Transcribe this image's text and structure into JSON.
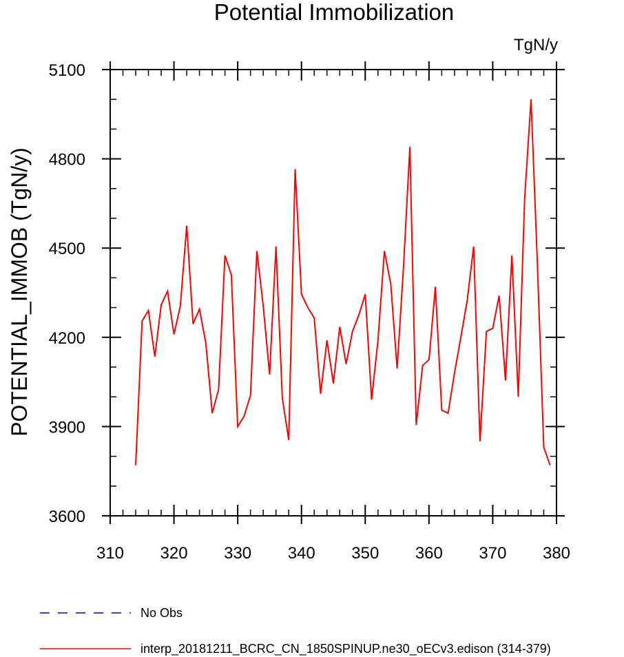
{
  "chart_data": {
    "type": "line",
    "title": "Potential Immobilization",
    "units_label": "TgN/y",
    "ylabel": "POTENTIAL_IMMOB  (TgN/y)",
    "xlabel": "",
    "xlim": [
      310,
      380
    ],
    "ylim": [
      3600,
      5100
    ],
    "x_ticks": [
      310,
      320,
      330,
      340,
      350,
      360,
      370,
      380
    ],
    "y_ticks": [
      3600,
      3900,
      4200,
      4500,
      4800,
      5100
    ],
    "x_minor_step": 2,
    "y_minor_step": 100,
    "series": [
      {
        "name": "interp_20181211_BCRC_CN_1850SPINUP.ne30_oECv3.edison (314-379)",
        "color": "#ff0000",
        "dash": "solid",
        "x": [
          314,
          315,
          316,
          317,
          318,
          319,
          320,
          321,
          322,
          323,
          324,
          325,
          326,
          327,
          328,
          329,
          330,
          331,
          332,
          333,
          334,
          335,
          336,
          337,
          338,
          339,
          340,
          341,
          342,
          343,
          344,
          345,
          346,
          347,
          348,
          349,
          350,
          351,
          352,
          353,
          354,
          355,
          356,
          357,
          358,
          359,
          360,
          361,
          362,
          363,
          364,
          365,
          366,
          367,
          368,
          369,
          370,
          371,
          372,
          373,
          374,
          375,
          376,
          377,
          378,
          379
        ],
        "values": [
          3770,
          4255,
          4290,
          4135,
          4310,
          4355,
          4210,
          4305,
          4575,
          4245,
          4295,
          4180,
          3945,
          4025,
          4475,
          4410,
          3900,
          3935,
          4005,
          4490,
          4305,
          4075,
          4505,
          3995,
          3855,
          4765,
          4345,
          4300,
          4265,
          4010,
          4190,
          4045,
          4235,
          4110,
          4220,
          4275,
          4345,
          3990,
          4190,
          4490,
          4380,
          4095,
          4435,
          4840,
          3905,
          4105,
          4125,
          4370,
          3955,
          3945,
          4080,
          4200,
          4325,
          4505,
          3850,
          4220,
          4230,
          4340,
          4055,
          4475,
          4000,
          4665,
          5000,
          4450,
          3830,
          3770
        ]
      },
      {
        "name": "No Obs",
        "color": "#0000cc",
        "dash": "dashed",
        "x": [],
        "values": []
      }
    ],
    "legend": [
      {
        "label": "No Obs",
        "color": "#0000cc",
        "dash": "dashed"
      },
      {
        "label": "interp_20181211_BCRC_CN_1850SPINUP.ne30_oECv3.edison (314-379)",
        "color": "#ff0000",
        "dash": "solid"
      }
    ],
    "legend_position": "bottom-left"
  }
}
